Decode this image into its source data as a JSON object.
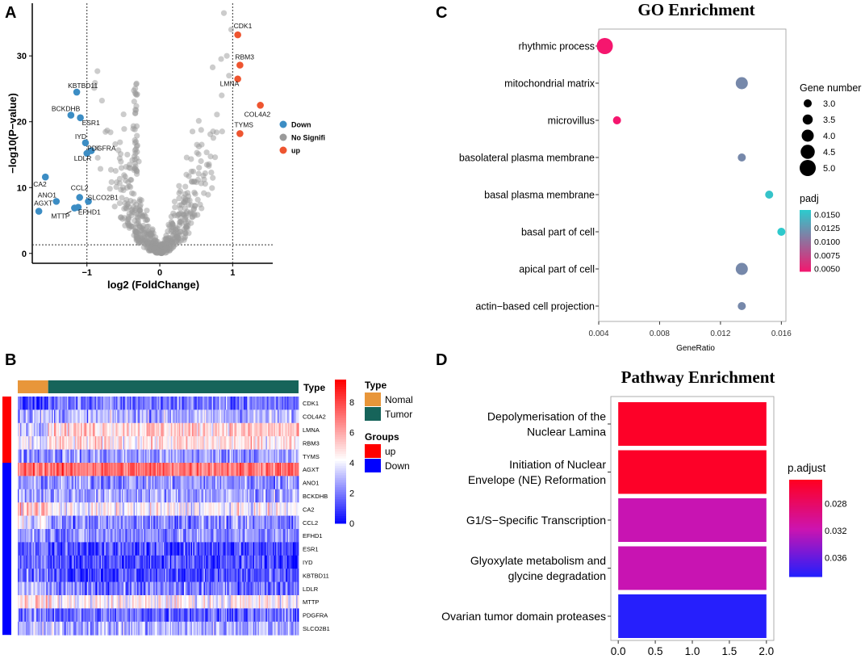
{
  "panels": {
    "a": "A",
    "b": "B",
    "c": "C",
    "d": "D"
  },
  "chart_data": [
    {
      "panel": "A",
      "type": "scatter",
      "title": "",
      "xlabel": "log2 (FoldChange)",
      "ylabel": "−log10(P−value)",
      "xlim": [
        -1.75,
        1.55
      ],
      "ylim": [
        -1.5,
        38
      ],
      "xticks": [
        -1,
        0,
        1
      ],
      "xtick_labels": [
        "−1",
        "0",
        "1"
      ],
      "yticks": [
        0,
        10,
        20,
        30
      ],
      "yticks_labels": [
        "0",
        "10",
        "20",
        "30"
      ],
      "thresholds": {
        "x": [
          -1,
          1
        ],
        "y": 1.3
      },
      "legend": {
        "position": "right",
        "entries": [
          "Down",
          "No Signifi",
          "up"
        ],
        "colors": [
          "#3c8dc4",
          "#9a9a9a",
          "#ee5530"
        ]
      },
      "series": [
        {
          "name": "Down",
          "color": "#3c8dc4",
          "points": [
            {
              "label": "KBTBD11",
              "x": -1.14,
              "y": 24.5
            },
            {
              "label": "BCKDHB",
              "x": -1.22,
              "y": 21.0
            },
            {
              "label": "ESR1",
              "x": -1.09,
              "y": 20.6
            },
            {
              "label": "IYD",
              "x": -1.02,
              "y": 16.8
            },
            {
              "label": "PDGFRA",
              "x": -0.94,
              "y": 15.6
            },
            {
              "label": "LDLR",
              "x": -1.0,
              "y": 15.2
            },
            {
              "label": "CA2",
              "x": -1.57,
              "y": 11.6
            },
            {
              "label": "ANO1",
              "x": -1.42,
              "y": 7.9
            },
            {
              "label": "CCL2",
              "x": -1.1,
              "y": 8.5
            },
            {
              "label": "SLCO2B1",
              "x": -0.98,
              "y": 7.9
            },
            {
              "label": "EFHD1",
              "x": -1.12,
              "y": 7.0
            },
            {
              "label": "MTTP",
              "x": -1.17,
              "y": 6.9
            },
            {
              "label": "AGXT",
              "x": -1.66,
              "y": 6.4
            }
          ]
        },
        {
          "name": "up",
          "color": "#ee5530",
          "points": [
            {
              "label": "CDK1",
              "x": 1.07,
              "y": 33.2
            },
            {
              "label": "RBM3",
              "x": 1.1,
              "y": 28.6
            },
            {
              "label": "LMNA",
              "x": 1.07,
              "y": 26.5
            },
            {
              "label": "COL4A2",
              "x": 1.38,
              "y": 22.5
            },
            {
              "label": "TYMS",
              "x": 1.1,
              "y": 18.2
            }
          ]
        }
      ]
    },
    {
      "panel": "B",
      "type": "heatmap",
      "genes": [
        "CDK1",
        "COL4A2",
        "LMNA",
        "RBM3",
        "TYMS",
        "AGXT",
        "ANO1",
        "BCKDHB",
        "CA2",
        "CCL2",
        "EFHD1",
        "ESR1",
        "IYD",
        "KBTBD11",
        "LDLR",
        "MTTP",
        "PDGFRA",
        "SLCO2B1"
      ],
      "row_groups": [
        "up",
        "up",
        "up",
        "up",
        "up",
        "Down",
        "Down",
        "Down",
        "Down",
        "Down",
        "Down",
        "Down",
        "Down",
        "Down",
        "Down",
        "Down",
        "Down",
        "Down"
      ],
      "normal_fraction": 0.11,
      "row_means_normal": [
        1.0,
        3.2,
        3.8,
        3.8,
        2.6,
        7.3,
        2.5,
        3.0,
        5.5,
        4.0,
        2.8,
        1.8,
        2.0,
        2.2,
        3.0,
        5.2,
        2.0,
        3.0
      ],
      "row_means_tumor": [
        2.0,
        3.0,
        5.3,
        4.8,
        2.6,
        7.2,
        2.5,
        2.8,
        4.2,
        2.3,
        2.4,
        1.3,
        1.3,
        1.3,
        2.0,
        4.4,
        1.8,
        3.0
      ],
      "colorbar": {
        "ticks": [
          0,
          2,
          4,
          6,
          8
        ],
        "tick_labels": [
          "0",
          "2",
          "4",
          "6",
          "8"
        ],
        "min": 0,
        "max": 9.5
      },
      "legend": {
        "type_title": "Type",
        "type_entries": [
          "Nomal",
          "Tumor"
        ],
        "type_colors": [
          "#e8963a",
          "#16645a"
        ],
        "groups_title": "Groups",
        "groups_entries": [
          "up",
          "Down"
        ],
        "groups_colors": [
          "#ff0000",
          "#0000ff"
        ]
      }
    },
    {
      "panel": "C",
      "type": "scatter",
      "title": "GO Enrichment",
      "xlabel": "GeneRatio",
      "ylabel": "",
      "xlim": [
        0.004,
        0.0163
      ],
      "xticks": [
        0.004,
        0.008,
        0.012,
        0.016
      ],
      "xtick_labels": [
        "0.004",
        "0.008",
        "0.012",
        "0.016"
      ],
      "terms": [
        "rhythmic process",
        "mitochondrial matrix",
        "microvillus",
        "basolateral plasma membrane",
        "basal plasma membrane",
        "basal part of cell",
        "apical part of cell",
        "actin−based cell projection"
      ],
      "gene_ratio": [
        0.0044,
        0.0134,
        0.0052,
        0.0134,
        0.0152,
        0.016,
        0.0134,
        0.0134
      ],
      "gene_number": [
        5,
        4,
        3,
        3,
        3,
        3,
        4,
        3
      ],
      "padj": [
        0.0045,
        0.0117,
        0.0045,
        0.0117,
        0.0154,
        0.0158,
        0.0117,
        0.0117
      ],
      "size_legend": {
        "title": "Gene number",
        "values": [
          3.0,
          3.5,
          4.0,
          4.5,
          5.0
        ],
        "labels": [
          "3.0",
          "3.5",
          "4.0",
          "4.5",
          "5.0"
        ]
      },
      "color_legend": {
        "title": "padj",
        "ticks": [
          0.015,
          0.0125,
          0.01,
          0.0075,
          0.005
        ],
        "labels": [
          "0.0150",
          "0.0125",
          "0.0100",
          "0.0075",
          "0.0050"
        ],
        "min": 0.0045,
        "max": 0.0158
      }
    },
    {
      "panel": "D",
      "type": "bar",
      "orientation": "horizontal",
      "title": "Pathway Enrichment",
      "categories": [
        [
          "Depolymerisation of the",
          "Nuclear Lamina"
        ],
        [
          "Initiation of Nuclear",
          "Envelope (NE) Reformation"
        ],
        [
          "G1/S−Specific Transcription"
        ],
        [
          "Glyoxylate metabolism and",
          "glycine degradation"
        ],
        [
          "Ovarian tumor domain proteases"
        ]
      ],
      "values": [
        2,
        2,
        2,
        2,
        2
      ],
      "p_adjust": [
        0.0248,
        0.0248,
        0.0318,
        0.0318,
        0.0385
      ],
      "xlim": [
        -0.1,
        2.1
      ],
      "xticks": [
        0,
        0.5,
        1,
        1.5,
        2
      ],
      "xtick_labels": [
        "0.0",
        "0.5",
        "1.0",
        "1.5",
        "2.0"
      ],
      "color_legend": {
        "title": "p.adjust",
        "ticks": [
          0.028,
          0.032,
          0.036
        ],
        "labels": [
          "0.028",
          "0.032",
          "0.036"
        ],
        "min": 0.0245,
        "max": 0.0388
      }
    }
  ]
}
